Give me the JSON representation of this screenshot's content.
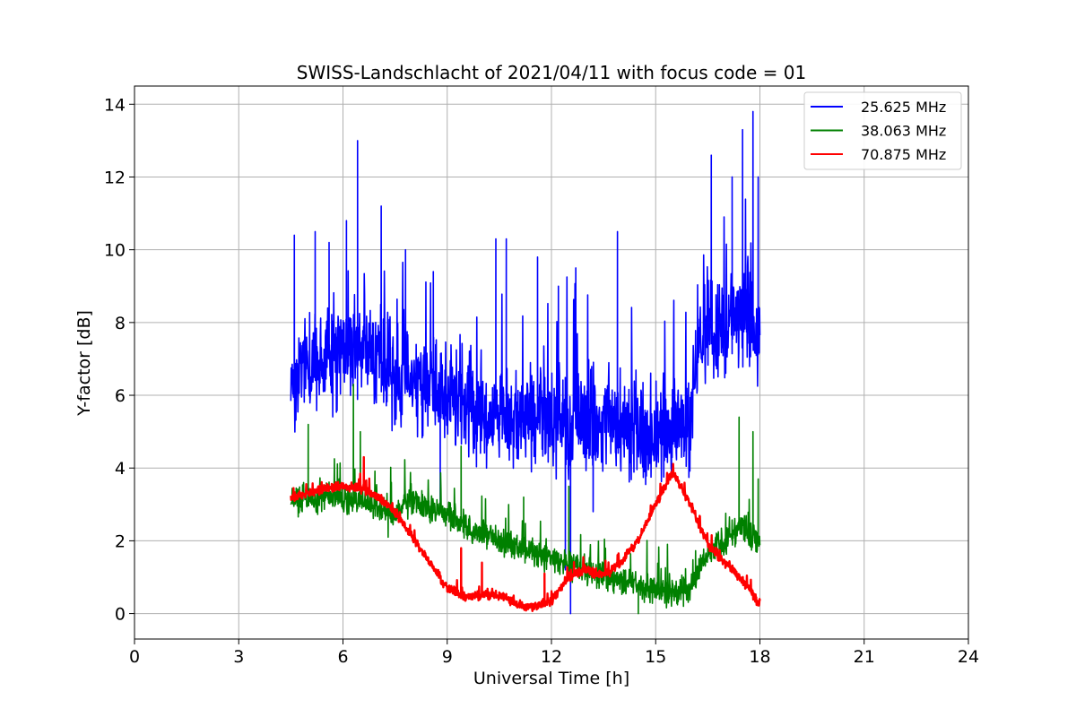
{
  "chart_data": {
    "type": "line",
    "title": "SWISS-Landschlacht of 2021/04/11 with focus code = 01",
    "xlabel": "Universal Time [h]",
    "ylabel": "Y-factor [dB]",
    "xlim": [
      0,
      24
    ],
    "ylim": [
      -0.7,
      14.5
    ],
    "xticks": [
      0,
      3,
      6,
      9,
      12,
      15,
      18,
      21,
      24
    ],
    "yticks": [
      0,
      2,
      4,
      6,
      8,
      10,
      12,
      14
    ],
    "grid": true,
    "legend_position": "top-right",
    "series": [
      {
        "name": "25.625 MHz",
        "color": "#0000ff",
        "noise": 1.3,
        "x": [
          4.5,
          5.0,
          5.5,
          6.0,
          6.5,
          7.0,
          7.5,
          8.0,
          8.5,
          9.0,
          9.5,
          10.0,
          10.5,
          11.0,
          11.5,
          12.0,
          12.5,
          13.0,
          13.5,
          14.0,
          14.5,
          15.0,
          15.5,
          16.0,
          16.2,
          16.5,
          17.0,
          17.5,
          18.0
        ],
        "y": [
          6.3,
          6.8,
          7.0,
          7.2,
          7.3,
          7.0,
          6.6,
          6.5,
          6.4,
          6.0,
          5.8,
          5.6,
          5.4,
          5.3,
          5.6,
          5.4,
          5.2,
          5.5,
          5.3,
          5.2,
          5.0,
          5.0,
          5.1,
          5.0,
          7.5,
          8.0,
          7.8,
          8.2,
          7.5
        ],
        "spikes": [
          {
            "x": 4.6,
            "y": 10.4
          },
          {
            "x": 5.2,
            "y": 10.5
          },
          {
            "x": 5.6,
            "y": 10.2
          },
          {
            "x": 6.1,
            "y": 10.8
          },
          {
            "x": 6.42,
            "y": 13.0
          },
          {
            "x": 7.1,
            "y": 11.2
          },
          {
            "x": 7.8,
            "y": 10.0
          },
          {
            "x": 8.6,
            "y": 9.4
          },
          {
            "x": 10.4,
            "y": 10.3
          },
          {
            "x": 10.7,
            "y": 10.3
          },
          {
            "x": 11.6,
            "y": 9.8
          },
          {
            "x": 12.2,
            "y": 9.0
          },
          {
            "x": 12.7,
            "y": 9.5
          },
          {
            "x": 13.9,
            "y": 10.5
          },
          {
            "x": 16.6,
            "y": 12.6
          },
          {
            "x": 17.2,
            "y": 12.0
          },
          {
            "x": 17.5,
            "y": 13.3
          },
          {
            "x": 17.8,
            "y": 13.8
          },
          {
            "x": 17.95,
            "y": 12.0
          }
        ],
        "dips": [
          {
            "x": 8.8,
            "y": 3.0
          },
          {
            "x": 12.4,
            "y": 1.2
          },
          {
            "x": 12.55,
            "y": 0.0
          },
          {
            "x": 13.2,
            "y": 2.8
          }
        ]
      },
      {
        "name": "38.063 MHz",
        "color": "#008000",
        "noise": 0.35,
        "x": [
          4.5,
          5.5,
          6.5,
          7.0,
          7.5,
          8.0,
          8.5,
          9.0,
          10.0,
          11.0,
          12.0,
          12.5,
          13.0,
          13.5,
          14.0,
          14.5,
          15.0,
          15.5,
          16.0,
          16.5,
          17.0,
          17.5,
          18.0
        ],
        "y": [
          3.1,
          3.2,
          3.1,
          2.9,
          2.7,
          3.1,
          2.9,
          2.7,
          2.2,
          1.8,
          1.5,
          1.3,
          1.2,
          1.1,
          0.9,
          0.8,
          0.6,
          0.6,
          0.7,
          1.6,
          2.0,
          2.4,
          2.0
        ],
        "spikes": [
          {
            "x": 5.0,
            "y": 5.2
          },
          {
            "x": 6.3,
            "y": 6.3
          },
          {
            "x": 6.5,
            "y": 5.0
          },
          {
            "x": 9.4,
            "y": 4.6
          },
          {
            "x": 11.2,
            "y": 3.2
          },
          {
            "x": 12.5,
            "y": 3.5
          },
          {
            "x": 17.4,
            "y": 5.4
          },
          {
            "x": 17.8,
            "y": 5.0
          },
          {
            "x": 17.95,
            "y": 3.7
          }
        ],
        "dips": [
          {
            "x": 7.3,
            "y": 2.1
          },
          {
            "x": 14.5,
            "y": 0.0
          },
          {
            "x": 15.8,
            "y": 0.2
          }
        ]
      },
      {
        "name": "70.875 MHz",
        "color": "#ff0000",
        "noise": 0.12,
        "x": [
          4.5,
          5.0,
          5.5,
          6.0,
          6.5,
          7.0,
          7.5,
          8.0,
          8.5,
          9.0,
          9.5,
          10.0,
          10.5,
          11.0,
          11.5,
          12.0,
          12.5,
          13.0,
          13.5,
          14.0,
          14.5,
          15.0,
          15.5,
          16.0,
          16.5,
          17.0,
          17.5,
          18.0
        ],
        "y": [
          3.2,
          3.3,
          3.45,
          3.5,
          3.45,
          3.2,
          2.8,
          2.1,
          1.4,
          0.7,
          0.45,
          0.5,
          0.5,
          0.25,
          0.2,
          0.35,
          1.0,
          1.2,
          1.05,
          1.4,
          2.0,
          3.0,
          3.9,
          3.0,
          1.9,
          1.4,
          0.9,
          0.25
        ],
        "spikes": [
          {
            "x": 6.6,
            "y": 4.3
          },
          {
            "x": 9.4,
            "y": 1.8
          },
          {
            "x": 10.0,
            "y": 1.4
          },
          {
            "x": 11.8,
            "y": 1.1
          }
        ],
        "dips": []
      }
    ]
  }
}
